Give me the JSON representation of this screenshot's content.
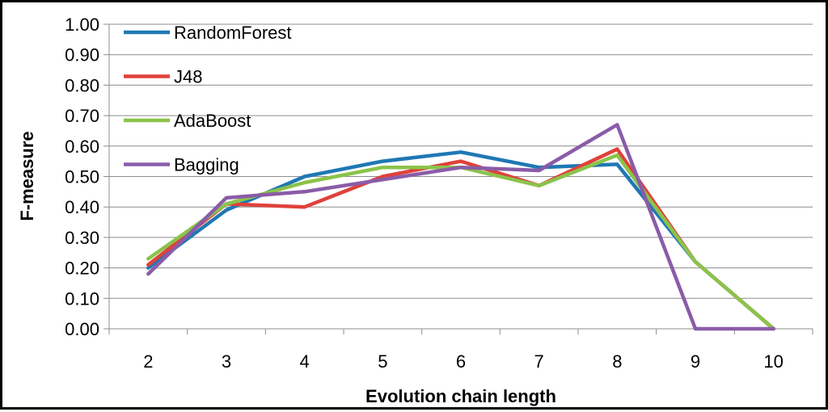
{
  "chart_data": {
    "type": "line",
    "xlabel": "Evolution chain length",
    "ylabel": "F-measure",
    "x": [
      2,
      3,
      4,
      5,
      6,
      7,
      8,
      9,
      10
    ],
    "ylim": [
      0,
      1
    ],
    "y_ticks": [
      "0.00",
      "0.10",
      "0.20",
      "0.30",
      "0.40",
      "0.50",
      "0.60",
      "0.70",
      "0.80",
      "0.90",
      "1.00"
    ],
    "grid": "horizontal",
    "legend_position": "top-left",
    "series": [
      {
        "name": "RandomForest",
        "color": "#1f78b4",
        "values": [
          0.2,
          0.39,
          0.5,
          0.55,
          0.58,
          0.53,
          0.54,
          0.22,
          0.0
        ]
      },
      {
        "name": "J48",
        "color": "#e0413b",
        "values": [
          0.21,
          0.41,
          0.4,
          0.5,
          0.55,
          0.47,
          0.59,
          0.22,
          0.0
        ]
      },
      {
        "name": "AdaBoost",
        "color": "#8bc34a",
        "values": [
          0.23,
          0.41,
          0.48,
          0.53,
          0.53,
          0.47,
          0.57,
          0.22,
          0.0
        ]
      },
      {
        "name": "Bagging",
        "color": "#8a5ca8",
        "values": [
          0.18,
          0.43,
          0.45,
          0.49,
          0.53,
          0.52,
          0.67,
          0.0,
          0.0
        ]
      }
    ]
  }
}
